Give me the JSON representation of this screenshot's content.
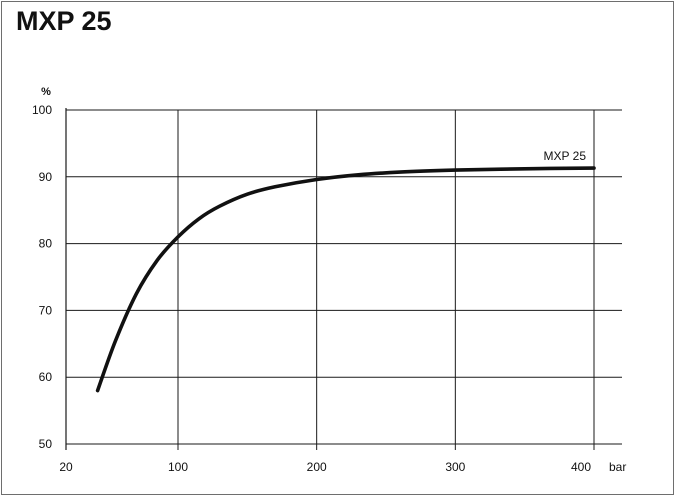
{
  "chart_data": {
    "type": "line",
    "title": "MXP 25",
    "xlabel": "bar",
    "ylabel": "%",
    "xlim": [
      20,
      400
    ],
    "ylim": [
      50,
      100
    ],
    "x_ticks": [
      20,
      100,
      200,
      300,
      400
    ],
    "y_ticks": [
      50,
      60,
      70,
      80,
      90,
      100
    ],
    "grid": true,
    "series": [
      {
        "name": "MXP 25",
        "color": "#111111",
        "x": [
          42,
          55,
          70,
          85,
          100,
          115,
          130,
          150,
          170,
          200,
          230,
          260,
          300,
          350,
          400
        ],
        "y": [
          58,
          65.5,
          72.5,
          77.5,
          81,
          83.7,
          85.6,
          87.4,
          88.5,
          89.6,
          90.3,
          90.7,
          91.0,
          91.2,
          91.3
        ]
      }
    ]
  }
}
